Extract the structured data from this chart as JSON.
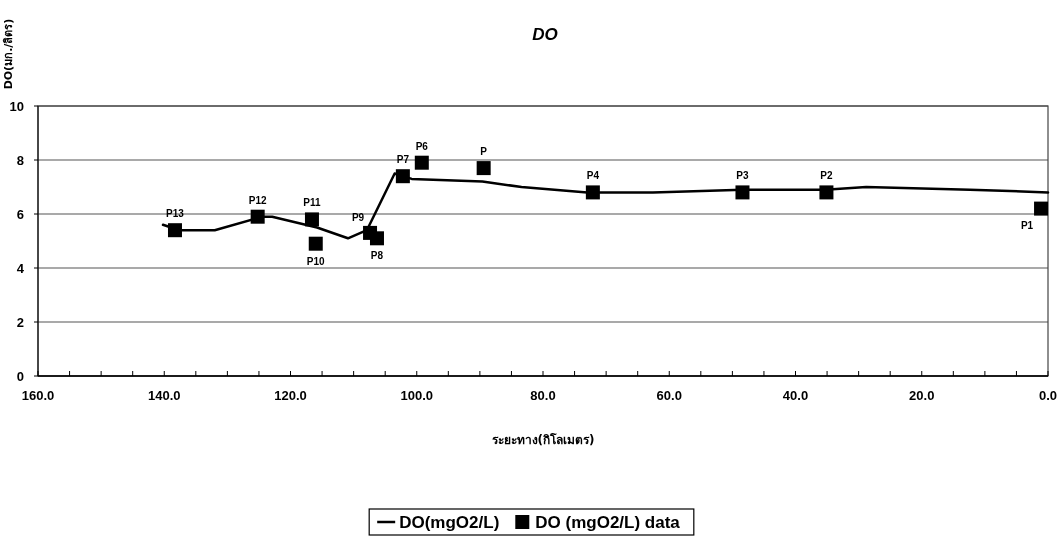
{
  "chart_data": {
    "type": "line",
    "title": "DO",
    "xlabel": "ระยะทาง(กิโลเมตร)",
    "ylabel": "DO(มก./ลิตร)",
    "xlim": [
      160,
      0
    ],
    "ylim": [
      0,
      10
    ],
    "xticks": [
      {
        "value": 160,
        "label": "160.0"
      },
      {
        "value": 155,
        "label": null
      },
      {
        "value": 150,
        "label": null
      },
      {
        "value": 145,
        "label": null
      },
      {
        "value": 140,
        "label": "140.0"
      },
      {
        "value": 135,
        "label": null
      },
      {
        "value": 130,
        "label": null
      },
      {
        "value": 125,
        "label": null
      },
      {
        "value": 120,
        "label": "120.0"
      },
      {
        "value": 115,
        "label": null
      },
      {
        "value": 110,
        "label": null
      },
      {
        "value": 105,
        "label": null
      },
      {
        "value": 100,
        "label": "100.0"
      },
      {
        "value": 95,
        "label": null
      },
      {
        "value": 90,
        "label": null
      },
      {
        "value": 85,
        "label": null
      },
      {
        "value": 80,
        "label": "80.0"
      },
      {
        "value": 75,
        "label": null
      },
      {
        "value": 70,
        "label": null
      },
      {
        "value": 65,
        "label": null
      },
      {
        "value": 60,
        "label": "60.0"
      },
      {
        "value": 55,
        "label": null
      },
      {
        "value": 50,
        "label": null
      },
      {
        "value": 45,
        "label": null
      },
      {
        "value": 40,
        "label": "40.0"
      },
      {
        "value": 35,
        "label": null
      },
      {
        "value": 30,
        "label": null
      },
      {
        "value": 25,
        "label": null
      },
      {
        "value": 20,
        "label": "20.0"
      },
      {
        "value": 15,
        "label": null
      },
      {
        "value": 10,
        "label": null
      },
      {
        "value": 5,
        "label": null
      },
      {
        "value": 0,
        "label": "0.0"
      }
    ],
    "yticks": [
      0,
      2,
      4,
      6,
      8,
      10
    ],
    "grid": "y",
    "legend": "bottom",
    "series": [
      {
        "name": "DO(mgO2/L)",
        "type": "line",
        "color": "#000000",
        "marker": "none",
        "x": [
          140.2,
          137.6,
          132,
          124.5,
          122.9,
          115.8,
          110.9,
          107.9,
          103.5,
          100.8,
          89.6,
          83.4,
          73,
          62.6,
          48.4,
          35.3,
          28.8,
          12.4,
          0
        ],
        "values": [
          5.6,
          5.4,
          5.4,
          5.9,
          5.9,
          5.5,
          5.1,
          5.4,
          7.5,
          7.3,
          7.2,
          7.0,
          6.8,
          6.8,
          6.9,
          6.9,
          7.0,
          6.9,
          6.8
        ]
      },
      {
        "name": "DO (mgO2/L) data",
        "type": "scatter",
        "color": "#000000",
        "marker": "square",
        "x": [
          138.3,
          125.2,
          116.6,
          116.0,
          107.4,
          106.3,
          102.2,
          99.2,
          89.4,
          72.1,
          48.4,
          35.1,
          1.1
        ],
        "values": [
          5.4,
          5.9,
          5.8,
          4.9,
          5.3,
          5.1,
          7.4,
          7.9,
          7.7,
          6.8,
          6.8,
          6.8,
          6.2
        ]
      }
    ],
    "annotations": [
      {
        "text": "P13",
        "x": 138.3,
        "y": 5.4
      },
      {
        "text": "P12",
        "x": 125.2,
        "y": 5.9
      },
      {
        "text": "P11",
        "x": 116.6,
        "y": 5.8
      },
      {
        "text": "P10",
        "x": 116.0,
        "y": 4.9
      },
      {
        "text": "P9",
        "x": 107.4,
        "y": 5.3
      },
      {
        "text": "P8",
        "x": 106.3,
        "y": 5.1
      },
      {
        "text": "P7",
        "x": 102.2,
        "y": 7.4
      },
      {
        "text": "P6",
        "x": 99.2,
        "y": 7.9
      },
      {
        "text": "P",
        "x": 89.4,
        "y": 7.7
      },
      {
        "text": "P4",
        "x": 72.1,
        "y": 6.8
      },
      {
        "text": "P3",
        "x": 48.4,
        "y": 6.8
      },
      {
        "text": "P2",
        "x": 35.1,
        "y": 6.8
      },
      {
        "text": "P1",
        "x": 1.1,
        "y": 6.2
      }
    ]
  }
}
